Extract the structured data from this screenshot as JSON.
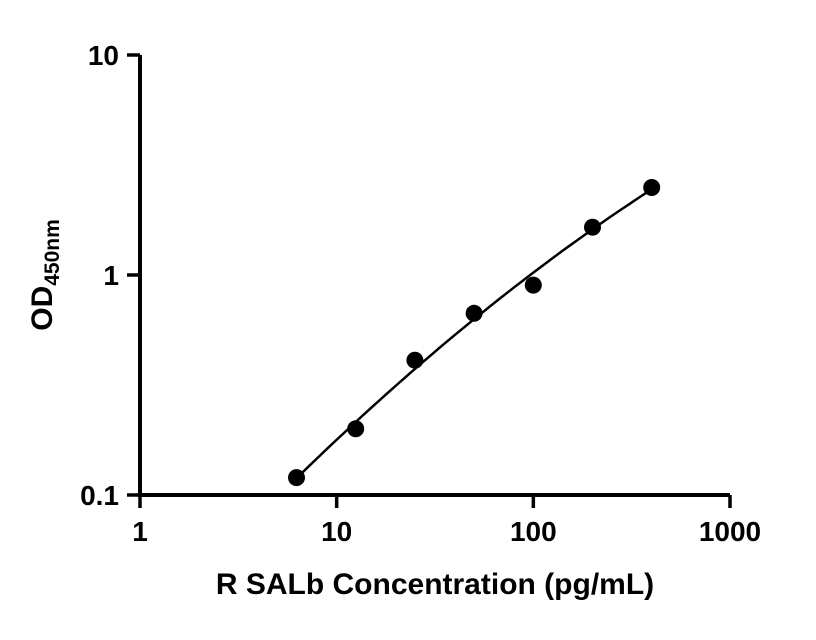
{
  "chart_data": {
    "type": "scatter",
    "title": "",
    "xlabel": "R SALb Concentration (pg/mL)",
    "ylabel_main": "OD",
    "ylabel_sub": "450nm",
    "x_scale": "log",
    "y_scale": "log",
    "xlim": [
      1,
      1000
    ],
    "ylim": [
      0.1,
      10
    ],
    "x_ticks": [
      "1",
      "10",
      "100",
      "1000"
    ],
    "y_ticks": [
      "0.1",
      "1",
      "10"
    ],
    "grid": false,
    "legend": "none",
    "fit": "quadratic-loglog",
    "marker_color": "#000000",
    "line_color": "#000000",
    "axis_color": "#000000",
    "points": [
      {
        "x": 6.25,
        "y": 0.12
      },
      {
        "x": 12.5,
        "y": 0.2
      },
      {
        "x": 25,
        "y": 0.41
      },
      {
        "x": 50,
        "y": 0.67
      },
      {
        "x": 100,
        "y": 0.9
      },
      {
        "x": 200,
        "y": 1.65
      },
      {
        "x": 400,
        "y": 2.5
      }
    ]
  }
}
